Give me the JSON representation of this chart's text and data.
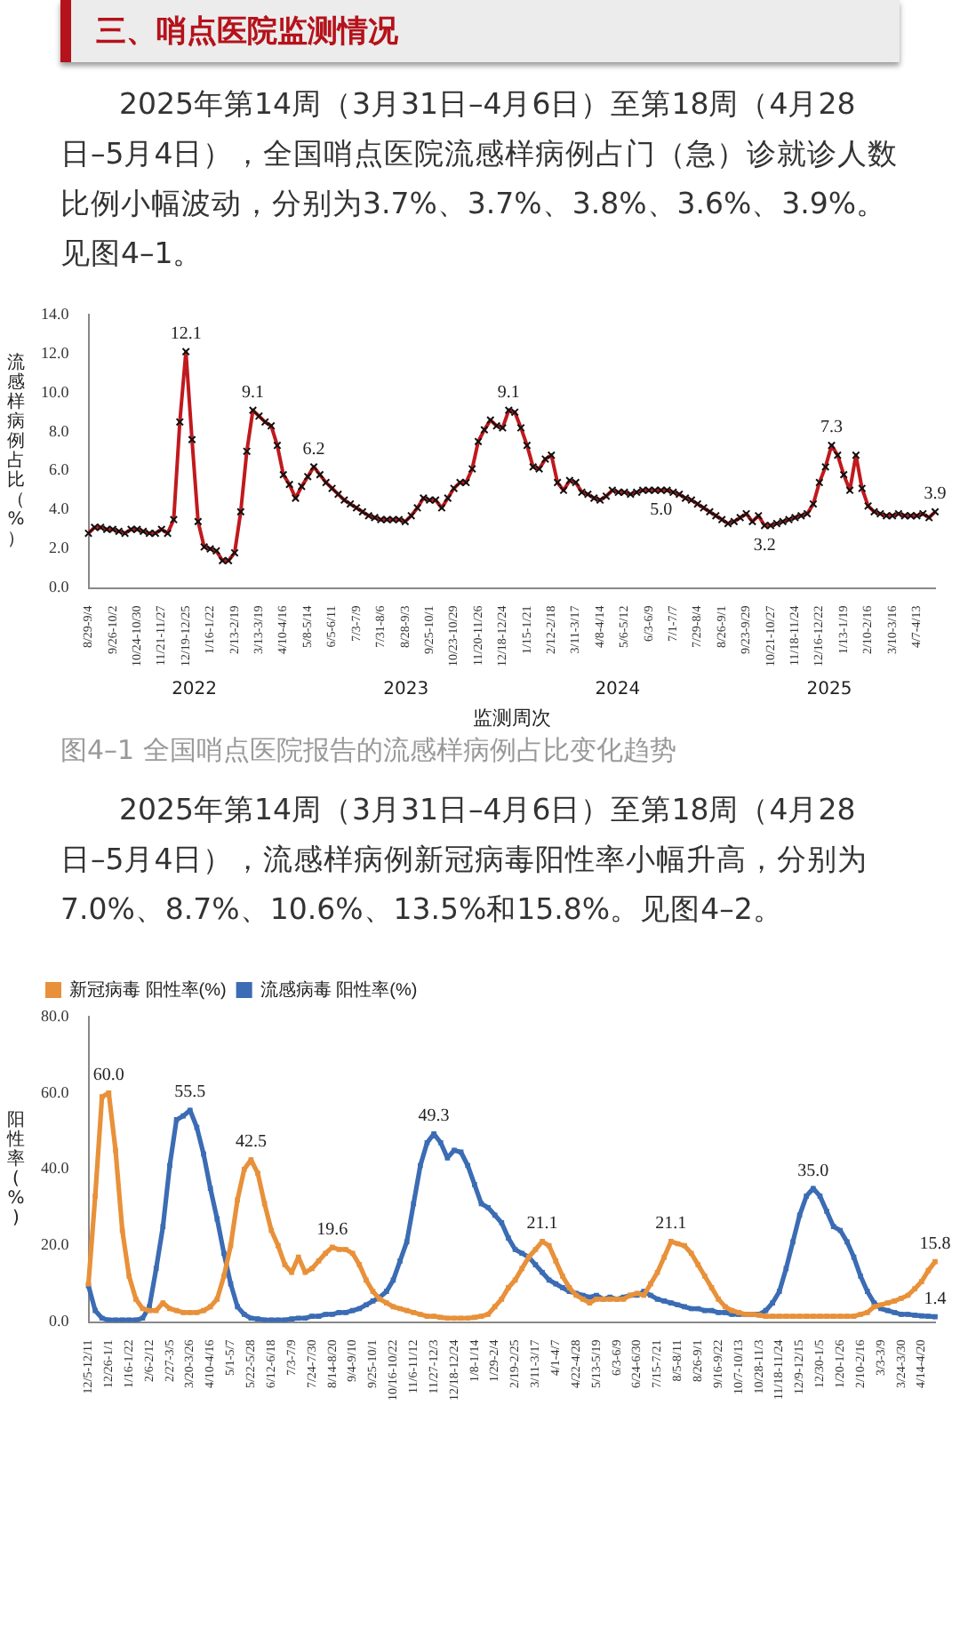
{
  "chart_data": [
    {
      "type": "line",
      "title": "图4–1 全国哨点医院报告的流感样病例占比变化趋势",
      "xlabel": "监测周次",
      "ylabel": "流感样病例占比（%）",
      "ylim": [
        0,
        14
      ],
      "yticks": [
        {
          "value": 0,
          "label": "0.0"
        },
        {
          "value": 2,
          "label": "2.0"
        },
        {
          "value": 4,
          "label": "4.0"
        },
        {
          "value": 6,
          "label": "6.0"
        },
        {
          "value": 8,
          "label": "8.0"
        },
        {
          "value": 10,
          "label": "10.0"
        },
        {
          "value": 12,
          "label": "12.0"
        },
        {
          "value": 14,
          "label": "14.0"
        }
      ],
      "grid": false,
      "legend": false,
      "marker": "cross",
      "line_style": "solid",
      "annotations": [
        "三、哨点医院监测情况",
        "2025年第14周（3月31日–4月6日）至第18周（4月28日–5月4日），全国哨点医院流感样病例占门（急）诊就诊人数比例小幅波动，分别为3.7%、3.7%、3.8%、3.6%、3.9%。见图4–1。",
        "2022",
        "2023",
        "2024",
        "2025"
      ],
      "categories": [
        "8/29-9/4",
        null,
        null,
        null,
        "9/26-10/2",
        null,
        null,
        null,
        "10/24-10/30",
        null,
        null,
        null,
        "11/21-11/27",
        null,
        null,
        null,
        "12/19-12/25",
        null,
        null,
        null,
        "1/16-1/22",
        null,
        null,
        null,
        "2/13-2/19",
        null,
        null,
        null,
        "3/13-3/19",
        null,
        null,
        null,
        "4/10-4/16",
        null,
        null,
        null,
        "5/8-5/14",
        null,
        null,
        null,
        "6/5-6/11",
        null,
        null,
        null,
        "7/3-7/9",
        null,
        null,
        null,
        "7/31-8/6",
        null,
        null,
        null,
        "8/28-9/3",
        null,
        null,
        null,
        "9/25-10/1",
        null,
        null,
        null,
        "10/23-10/29",
        null,
        null,
        null,
        "11/20-11/26",
        null,
        null,
        null,
        "12/18-12/24",
        null,
        null,
        null,
        "1/15-1/21",
        null,
        null,
        null,
        "2/12-2/18",
        null,
        null,
        null,
        "3/11-3/17",
        null,
        null,
        null,
        "4/8-4/14",
        null,
        null,
        null,
        "5/6-5/12",
        null,
        null,
        null,
        "6/3-6/9",
        null,
        null,
        null,
        "7/1-7/7",
        null,
        null,
        null,
        "7/29-8/4",
        null,
        null,
        null,
        "8/26-9/1",
        null,
        null,
        null,
        "9/23-9/29",
        null,
        null,
        null,
        "10/21-10/27",
        null,
        null,
        null,
        "11/18-11/24",
        null,
        null,
        null,
        "12/16-12/22",
        null,
        null,
        null,
        "1/13-1/19",
        null,
        null,
        null,
        "2/10-2/16",
        null,
        null,
        null,
        "3/10-3/16",
        null,
        null,
        null,
        "4/7-4/13",
        null,
        null,
        null
      ],
      "series": [
        {
          "color": "#c0191e",
          "values": [
            2.8,
            3.1,
            3.1,
            3.0,
            3.0,
            2.9,
            2.8,
            3.0,
            3.0,
            2.9,
            2.8,
            2.8,
            3.0,
            2.8,
            3.5,
            8.5,
            12.1,
            7.6,
            3.4,
            2.1,
            2.0,
            1.9,
            1.4,
            1.4,
            1.8,
            3.9,
            7.0,
            9.1,
            8.8,
            8.5,
            8.3,
            7.3,
            5.8,
            5.3,
            4.6,
            5.2,
            5.7,
            6.2,
            5.8,
            5.4,
            5.1,
            4.8,
            4.5,
            4.3,
            4.1,
            3.9,
            3.7,
            3.6,
            3.5,
            3.5,
            3.5,
            3.5,
            3.4,
            3.7,
            4.1,
            4.6,
            4.5,
            4.5,
            4.1,
            4.6,
            5.1,
            5.4,
            5.4,
            6.1,
            7.5,
            8.1,
            8.6,
            8.3,
            8.2,
            9.1,
            9.0,
            8.2,
            7.3,
            6.2,
            6.1,
            6.6,
            6.8,
            5.4,
            5.0,
            5.5,
            5.4,
            4.9,
            4.8,
            4.6,
            4.5,
            4.7,
            5.0,
            4.9,
            4.9,
            4.8,
            4.9,
            5.0,
            5.0,
            5.0,
            5.0,
            5.0,
            4.9,
            4.8,
            4.6,
            4.5,
            4.3,
            4.1,
            3.9,
            3.7,
            3.5,
            3.3,
            3.4,
            3.6,
            3.8,
            3.4,
            3.7,
            3.2,
            3.2,
            3.3,
            3.4,
            3.5,
            3.6,
            3.7,
            3.8,
            4.3,
            5.4,
            6.2,
            7.3,
            6.8,
            5.8,
            5.0,
            6.8,
            5.1,
            4.2,
            3.9,
            3.8,
            3.7,
            3.7,
            3.8,
            3.7,
            3.7,
            3.7,
            3.8,
            3.6,
            3.9
          ],
          "value_labels": [
            null,
            null,
            null,
            null,
            null,
            null,
            null,
            null,
            null,
            null,
            null,
            null,
            null,
            null,
            null,
            null,
            "12.1",
            null,
            null,
            null,
            null,
            null,
            null,
            null,
            null,
            null,
            null,
            "9.1",
            null,
            null,
            null,
            null,
            null,
            null,
            null,
            null,
            null,
            "6.2",
            null,
            null,
            null,
            null,
            null,
            null,
            null,
            null,
            null,
            null,
            null,
            null,
            null,
            null,
            null,
            null,
            null,
            null,
            null,
            null,
            null,
            null,
            null,
            null,
            null,
            null,
            null,
            null,
            null,
            null,
            null,
            "9.1",
            null,
            null,
            null,
            null,
            null,
            null,
            null,
            null,
            null,
            null,
            null,
            null,
            null,
            null,
            null,
            null,
            null,
            null,
            null,
            null,
            null,
            null,
            null,
            null,
            "5.0",
            null,
            null,
            null,
            null,
            null,
            null,
            null,
            null,
            null,
            null,
            null,
            null,
            null,
            null,
            null,
            null,
            "3.2",
            null,
            null,
            null,
            null,
            null,
            null,
            null,
            null,
            null,
            null,
            "7.3",
            null,
            null,
            null,
            null,
            null,
            null,
            null,
            null,
            null,
            null,
            null,
            null,
            null,
            null,
            null,
            null,
            "3.9"
          ]
        }
      ]
    },
    {
      "type": "line",
      "ylabel": "阳性率(%)",
      "ylim": [
        0,
        80
      ],
      "yticks": [
        {
          "value": 0,
          "label": "0.0"
        },
        {
          "value": 20,
          "label": "20.0"
        },
        {
          "value": 40,
          "label": "40.0"
        },
        {
          "value": 60,
          "label": "60.0"
        },
        {
          "value": 80,
          "label": "80.0"
        }
      ],
      "grid": false,
      "legend": "top left",
      "marker": "square",
      "line_style": "solid",
      "annotations": [
        "2025年第14周（3月31日–4月6日）至第18周（4月28日–5月4日），流感样病例新冠病毒阳性率小幅升高，分别为7.0%、8.7%、10.6%、13.5%和15.8%。见图4–2。"
      ],
      "categories": [
        "12/5-12/11",
        null,
        null,
        "12/26-1/1",
        null,
        null,
        "1/16-1/22",
        null,
        null,
        "2/6-2/12",
        null,
        null,
        "2/27-3/5",
        null,
        null,
        "3/20-3/26",
        null,
        null,
        "4/10-4/16",
        null,
        null,
        "5/1-5/7",
        null,
        null,
        "5/22-5/28",
        null,
        null,
        "6/12-6/18",
        null,
        null,
        "7/3-7/9",
        null,
        null,
        "7/24-7/30",
        null,
        null,
        "8/14-8/20",
        null,
        null,
        "9/4-9/10",
        null,
        null,
        "9/25-10/1",
        null,
        null,
        "10/16-10/22",
        null,
        null,
        "11/6-11/12",
        null,
        null,
        "11/27-12/3",
        null,
        null,
        "12/18-12/24",
        null,
        null,
        "1/8-1/14",
        null,
        null,
        "1/29-2/4",
        null,
        null,
        "2/19-2/25",
        null,
        null,
        "3/11-3/17",
        null,
        null,
        "4/1-4/7",
        null,
        null,
        "4/22-4/28",
        null,
        null,
        "5/13-5/19",
        null,
        null,
        "6/3-6/9",
        null,
        null,
        "6/24-6/30",
        null,
        null,
        "7/15-7/21",
        null,
        null,
        "8/5-8/11",
        null,
        null,
        "8/26-9/1",
        null,
        null,
        "9/16-9/22",
        null,
        null,
        "10/7-10/13",
        null,
        null,
        "10/28-11/3",
        null,
        null,
        "11/18-11/24",
        null,
        null,
        "12/9-12/15",
        null,
        null,
        "12/30-1/5",
        null,
        null,
        "1/20-1/26",
        null,
        null,
        "2/10-2/16",
        null,
        null,
        "3/3-3/9",
        null,
        null,
        "3/24-3/30",
        null,
        null,
        "4/14-4/20",
        null,
        null
      ],
      "series": [
        {
          "name": "新冠病毒 阳性率(%)",
          "color": "#e8913a",
          "values": [
            10,
            33,
            59,
            60,
            45,
            24,
            12,
            6,
            3.5,
            3,
            3,
            5,
            3.5,
            3,
            2.5,
            2.5,
            2.5,
            3,
            4,
            6,
            12,
            20,
            32,
            40,
            42.5,
            39,
            31,
            24,
            20,
            15,
            13,
            17,
            13,
            14,
            16,
            18,
            19.6,
            19,
            19,
            18,
            15,
            11,
            8,
            6,
            5,
            4,
            3.5,
            3,
            2.5,
            2,
            1.5,
            1.5,
            1.2,
            1,
            1,
            1,
            1,
            1.2,
            1.5,
            2,
            4,
            6,
            9,
            11,
            14,
            17,
            19,
            21.1,
            20,
            16,
            12,
            9,
            7,
            6,
            5,
            6,
            6,
            6,
            6,
            6,
            7,
            7.5,
            7,
            10,
            13,
            17,
            21.1,
            20.5,
            20,
            18,
            15,
            12,
            9,
            6,
            4,
            3,
            2.5,
            2,
            2,
            1.8,
            1.5,
            1.5,
            1.5,
            1.5,
            1.5,
            1.5,
            1.5,
            1.5,
            1.5,
            1.5,
            1.5,
            1.5,
            1.5,
            1.5,
            2,
            2.5,
            4,
            4.5,
            5,
            5.5,
            6.2,
            7.0,
            8.7,
            10.6,
            13.5,
            15.8
          ],
          "value_labels": [
            null,
            null,
            null,
            "60.0",
            null,
            null,
            null,
            null,
            null,
            null,
            null,
            null,
            null,
            null,
            null,
            null,
            null,
            null,
            null,
            null,
            null,
            null,
            null,
            null,
            "42.5",
            null,
            null,
            null,
            null,
            null,
            null,
            null,
            null,
            null,
            null,
            null,
            "19.6",
            null,
            null,
            null,
            null,
            null,
            null,
            null,
            null,
            null,
            null,
            null,
            null,
            null,
            null,
            null,
            null,
            null,
            null,
            null,
            null,
            null,
            null,
            null,
            null,
            null,
            null,
            null,
            null,
            null,
            null,
            "21.1",
            null,
            null,
            null,
            null,
            null,
            null,
            null,
            null,
            null,
            null,
            null,
            null,
            null,
            null,
            null,
            null,
            null,
            null,
            "21.1",
            null,
            null,
            null,
            null,
            null,
            null,
            null,
            null,
            null,
            null,
            null,
            null,
            null,
            null,
            null,
            null,
            null,
            null,
            null,
            null,
            null,
            null,
            null,
            null,
            null,
            null,
            null,
            null,
            null,
            null,
            null,
            null,
            null,
            null,
            null,
            null,
            null,
            null,
            "15.8"
          ]
        },
        {
          "name": "流感病毒 阳性率(%)",
          "color": "#3b6cb4",
          "values": [
            9.5,
            3,
            1,
            0.5,
            0.5,
            0.5,
            0.5,
            0.5,
            1,
            4,
            14,
            25,
            41,
            53,
            54,
            55.5,
            51,
            44,
            35,
            27,
            18,
            10,
            4,
            2,
            1,
            0.8,
            0.5,
            0.5,
            0.5,
            0.5,
            0.8,
            1,
            1,
            1.5,
            1.5,
            2,
            2,
            2.5,
            2.5,
            3,
            3.5,
            4.5,
            5.5,
            6.5,
            8,
            11,
            16,
            21,
            31,
            41,
            47,
            49.3,
            47,
            43,
            45,
            44.5,
            41,
            36,
            31,
            30,
            28,
            26,
            22,
            19,
            18,
            17,
            15,
            13,
            11,
            10,
            9,
            8,
            7.5,
            7,
            6.5,
            7,
            6,
            6.5,
            6,
            6.5,
            7,
            7,
            8,
            7,
            6,
            5.5,
            5,
            4.5,
            4,
            3.5,
            3.5,
            3,
            3,
            2.5,
            2.5,
            2,
            2,
            2,
            2,
            2,
            3,
            5,
            8,
            14,
            21,
            28,
            33,
            35,
            33,
            29,
            25,
            24,
            21,
            17,
            12,
            8,
            5,
            3.5,
            3,
            2.5,
            2,
            2,
            1.8,
            1.6,
            1.5,
            1.4
          ],
          "value_labels": [
            null,
            null,
            null,
            null,
            null,
            null,
            null,
            null,
            null,
            null,
            null,
            null,
            null,
            null,
            null,
            "55.5",
            null,
            null,
            null,
            null,
            null,
            null,
            null,
            null,
            null,
            null,
            null,
            null,
            null,
            null,
            null,
            null,
            null,
            null,
            null,
            null,
            null,
            null,
            null,
            null,
            null,
            null,
            null,
            null,
            null,
            null,
            null,
            null,
            null,
            null,
            null,
            "49.3",
            null,
            null,
            null,
            null,
            null,
            null,
            null,
            null,
            null,
            null,
            null,
            null,
            null,
            null,
            null,
            null,
            null,
            null,
            null,
            null,
            null,
            null,
            null,
            null,
            null,
            null,
            null,
            null,
            null,
            null,
            null,
            null,
            null,
            null,
            null,
            null,
            null,
            null,
            null,
            null,
            null,
            null,
            null,
            null,
            null,
            null,
            null,
            null,
            null,
            null,
            null,
            null,
            null,
            null,
            null,
            "35.0",
            null,
            null,
            null,
            null,
            null,
            null,
            null,
            null,
            null,
            null,
            null,
            null,
            null,
            null,
            null,
            null,
            null,
            "1.4"
          ]
        }
      ]
    }
  ]
}
